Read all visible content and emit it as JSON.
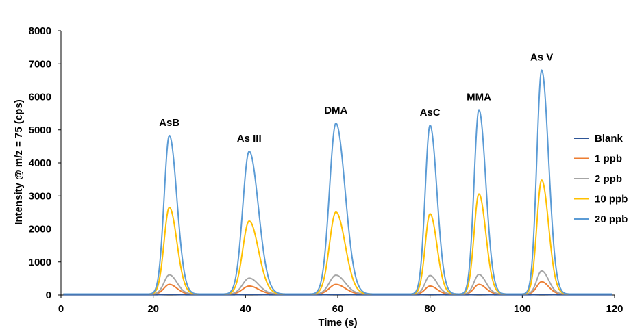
{
  "chart_data": {
    "type": "line",
    "title": "",
    "xlabel": "Time (s)",
    "ylabel": "Intensity @ m/z = 75 (cps)",
    "xlim": [
      0,
      120
    ],
    "ylim": [
      0,
      8000
    ],
    "xticks": [
      0,
      20,
      40,
      60,
      80,
      100,
      120
    ],
    "yticks": [
      0,
      1000,
      2000,
      3000,
      4000,
      5000,
      6000,
      7000,
      8000
    ],
    "grid": false,
    "legend_position": "right",
    "baseline": 30,
    "peaks": [
      {
        "label": "AsB",
        "time": 23.5,
        "sigma": 1.3
      },
      {
        "label": "As III",
        "time": 40.8,
        "sigma": 1.6
      },
      {
        "label": "DMA",
        "time": 59.6,
        "sigma": 1.6
      },
      {
        "label": "AsC",
        "time": 80.0,
        "sigma": 1.2
      },
      {
        "label": "MMA",
        "time": 90.6,
        "sigma": 1.2
      },
      {
        "label": "As V",
        "time": 104.2,
        "sigma": 1.2
      }
    ],
    "series": [
      {
        "name": "Blank",
        "color": "#2e5597",
        "peak_heights": [
          10,
          10,
          10,
          10,
          10,
          10
        ]
      },
      {
        "name": "1 ppb",
        "color": "#ed7d31",
        "peak_heights": [
          290,
          240,
          290,
          240,
          290,
          370
        ]
      },
      {
        "name": "2 ppb",
        "color": "#a5a5a5",
        "peak_heights": [
          580,
          480,
          570,
          560,
          590,
          700
        ]
      },
      {
        "name": "10 ppb",
        "color": "#ffc000",
        "peak_heights": [
          2620,
          2210,
          2480,
          2430,
          3030,
          3450
        ]
      },
      {
        "name": "20 ppb",
        "color": "#5b9bd5",
        "peak_heights": [
          4800,
          4320,
          5170,
          5110,
          5580,
          6780
        ]
      }
    ]
  }
}
